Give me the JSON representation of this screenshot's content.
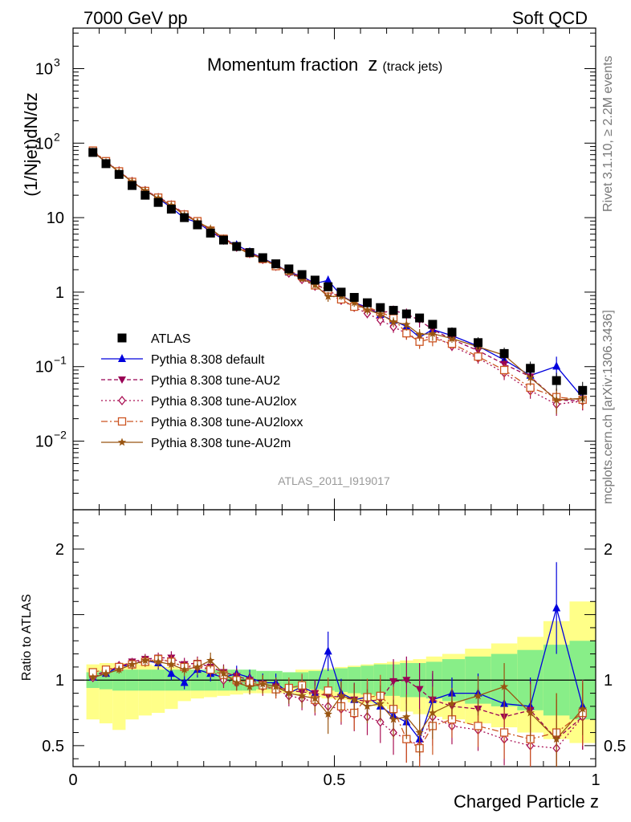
{
  "header": {
    "left": "7000 GeV pp",
    "right": "Soft QCD"
  },
  "side": {
    "top": "Rivet 3.1.10, ≥ 2.2M events",
    "bottom": "mcplots.cern.ch [arXiv:1306.3436]"
  },
  "chart_data": {
    "type": "line",
    "title_main": "Momentum fraction",
    "title_var": "z",
    "title_sub": "(track jets)",
    "watermark": "ATLAS_2011_I919017",
    "xlabel": "Charged Particle z",
    "ylabel": "(1/Njet)dN/dz",
    "ratio_ylabel": "Ratio to ATLAS",
    "xlim": [
      0,
      1
    ],
    "ylim": [
      0.0012,
      3500
    ],
    "ylog": true,
    "ratio_ylim": [
      0.34,
      2.3
    ],
    "x_ticks": [
      {
        "v": 0,
        "label": "0"
      },
      {
        "v": 0.5,
        "label": "0.5"
      },
      {
        "v": 1,
        "label": "1"
      }
    ],
    "y_ticks": [
      {
        "v": 1000,
        "label": "10",
        "exp": "3"
      },
      {
        "v": 100,
        "label": "10",
        "exp": "2"
      },
      {
        "v": 10,
        "label": "10",
        "exp": ""
      },
      {
        "v": 1,
        "label": "1",
        "exp": ""
      },
      {
        "v": 0.1,
        "label": "10",
        "exp": "−1"
      },
      {
        "v": 0.01,
        "label": "10",
        "exp": "−2"
      }
    ],
    "ratio_ticks": [
      {
        "v": 2,
        "label": "2"
      },
      {
        "v": 1,
        "label": "1"
      },
      {
        "v": 0.5,
        "label": "0.5"
      }
    ],
    "legend_position": "lower-left",
    "x": [
      0.038,
      0.063,
      0.088,
      0.113,
      0.138,
      0.163,
      0.188,
      0.213,
      0.238,
      0.263,
      0.288,
      0.313,
      0.338,
      0.363,
      0.388,
      0.413,
      0.438,
      0.463,
      0.488,
      0.513,
      0.538,
      0.563,
      0.588,
      0.613,
      0.638,
      0.663,
      0.688,
      0.725,
      0.775,
      0.825,
      0.875,
      0.925,
      0.975
    ],
    "data": {
      "name": "ATLAS",
      "values": [
        75,
        53,
        38,
        27,
        20,
        16,
        13,
        10,
        8,
        6.2,
        5,
        4.1,
        3.4,
        2.9,
        2.4,
        2.05,
        1.72,
        1.45,
        1.18,
        1.0,
        0.85,
        0.72,
        0.62,
        0.57,
        0.51,
        0.45,
        0.37,
        0.29,
        0.21,
        0.15,
        0.095,
        0.065,
        0.048
      ],
      "band_stat": [
        0.06,
        0.07,
        0.08,
        0.08,
        0.08,
        0.08,
        0.08,
        0.08,
        0.08,
        0.08,
        0.08,
        0.08,
        0.08,
        0.07,
        0.07,
        0.06,
        0.06,
        0.07,
        0.08,
        0.09,
        0.1,
        0.11,
        0.12,
        0.12,
        0.13,
        0.13,
        0.14,
        0.16,
        0.18,
        0.2,
        0.23,
        0.27,
        0.3
      ],
      "band_tot_up": [
        0.12,
        0.13,
        0.13,
        0.13,
        0.12,
        0.11,
        0.1,
        0.09,
        0.08,
        0.07,
        0.06,
        0.06,
        0.05,
        0.05,
        0.05,
        0.06,
        0.08,
        0.08,
        0.09,
        0.1,
        0.11,
        0.12,
        0.13,
        0.14,
        0.15,
        0.16,
        0.18,
        0.2,
        0.24,
        0.28,
        0.33,
        0.45,
        0.6
      ],
      "band_tot_dn": [
        0.3,
        0.33,
        0.38,
        0.3,
        0.27,
        0.25,
        0.22,
        0.16,
        0.14,
        0.13,
        0.12,
        0.11,
        0.1,
        0.1,
        0.1,
        0.1,
        0.11,
        0.13,
        0.14,
        0.15,
        0.17,
        0.18,
        0.2,
        0.22,
        0.24,
        0.26,
        0.28,
        0.3,
        0.33,
        0.36,
        0.4,
        0.45,
        0.48
      ]
    },
    "series": [
      {
        "name": "Pythia 8.308 default",
        "color": "#0000dd",
        "dash": "",
        "marker": "triangle-up",
        "ratio": [
          1.02,
          1.05,
          1.1,
          1.12,
          1.15,
          1.13,
          1.05,
          0.98,
          1.08,
          1.05,
          1.02,
          1.05,
          1.02,
          0.98,
          0.98,
          0.9,
          0.95,
          0.9,
          1.22,
          0.9,
          0.85,
          0.87,
          0.8,
          0.73,
          0.68,
          0.55,
          0.85,
          0.9,
          0.9,
          0.82,
          0.8,
          1.55,
          0.8
        ],
        "err": [
          0.02,
          0.03,
          0.03,
          0.04,
          0.04,
          0.05,
          0.05,
          0.05,
          0.06,
          0.06,
          0.06,
          0.06,
          0.06,
          0.07,
          0.07,
          0.08,
          0.09,
          0.1,
          0.15,
          0.11,
          0.12,
          0.13,
          0.14,
          0.15,
          0.17,
          0.18,
          0.2,
          0.12,
          0.15,
          0.18,
          0.22,
          0.35,
          0.2
        ]
      },
      {
        "name": "Pythia 8.308 tune-AU2",
        "color": "#990055",
        "dash": "5,3",
        "marker": "triangle-down",
        "ratio": [
          1.03,
          1.07,
          1.1,
          1.14,
          1.16,
          1.17,
          1.17,
          1.12,
          1.13,
          1.1,
          1.06,
          1.03,
          1.0,
          0.97,
          0.95,
          0.92,
          0.91,
          0.9,
          0.88,
          0.87,
          0.85,
          0.84,
          0.85,
          0.99,
          1.0,
          0.93,
          0.85,
          0.8,
          0.78,
          0.72,
          0.77,
          0.55,
          0.72
        ],
        "err": [
          0.02,
          0.02,
          0.03,
          0.03,
          0.04,
          0.04,
          0.05,
          0.05,
          0.05,
          0.06,
          0.06,
          0.06,
          0.06,
          0.07,
          0.07,
          0.08,
          0.09,
          0.1,
          0.1,
          0.12,
          0.13,
          0.14,
          0.16,
          0.17,
          0.18,
          0.2,
          0.22,
          0.14,
          0.16,
          0.2,
          0.22,
          0.3,
          0.25
        ]
      },
      {
        "name": "Pythia 8.308 tune-AU2lox",
        "color": "#aa1155",
        "dash": "2,3",
        "marker": "diamond",
        "ratio": [
          1.02,
          1.06,
          1.11,
          1.13,
          1.15,
          1.16,
          1.14,
          1.1,
          1.1,
          1.08,
          1.0,
          0.98,
          0.97,
          0.95,
          0.93,
          0.88,
          0.86,
          0.83,
          0.8,
          0.78,
          0.74,
          0.72,
          0.68,
          0.6,
          0.55,
          0.5,
          0.72,
          0.65,
          0.62,
          0.55,
          0.5,
          0.48,
          0.72
        ],
        "err": [
          0.02,
          0.02,
          0.03,
          0.03,
          0.04,
          0.04,
          0.05,
          0.05,
          0.05,
          0.06,
          0.06,
          0.06,
          0.06,
          0.07,
          0.07,
          0.08,
          0.09,
          0.1,
          0.1,
          0.12,
          0.13,
          0.14,
          0.16,
          0.17,
          0.18,
          0.2,
          0.22,
          0.14,
          0.16,
          0.2,
          0.22,
          0.3,
          0.25
        ]
      },
      {
        "name": "Pythia 8.308 tune-AU2loxx",
        "color": "#cc5522",
        "dash": "8,3,2,3",
        "marker": "square-open",
        "ratio": [
          1.06,
          1.08,
          1.1,
          1.12,
          1.14,
          1.16,
          1.14,
          1.1,
          1.12,
          1.08,
          1.04,
          1.0,
          0.98,
          0.96,
          0.93,
          0.94,
          0.96,
          0.85,
          0.92,
          0.8,
          0.75,
          0.87,
          0.88,
          0.78,
          0.55,
          0.48,
          0.65,
          0.7,
          0.65,
          0.6,
          0.55,
          0.6,
          0.75
        ],
        "err": [
          0.02,
          0.02,
          0.03,
          0.03,
          0.04,
          0.04,
          0.05,
          0.05,
          0.05,
          0.06,
          0.06,
          0.06,
          0.06,
          0.07,
          0.07,
          0.08,
          0.09,
          0.1,
          0.1,
          0.12,
          0.13,
          0.14,
          0.16,
          0.17,
          0.18,
          0.2,
          0.22,
          0.14,
          0.16,
          0.2,
          0.22,
          0.3,
          0.25
        ]
      },
      {
        "name": "Pythia 8.308 tune-AU2m",
        "color": "#995511",
        "dash": "",
        "marker": "star",
        "ratio": [
          1.02,
          1.05,
          1.08,
          1.12,
          1.15,
          1.14,
          1.12,
          1.08,
          1.1,
          1.15,
          1.05,
          0.98,
          0.95,
          0.97,
          0.95,
          0.9,
          0.88,
          0.86,
          0.74,
          0.88,
          0.85,
          0.8,
          0.82,
          0.7,
          0.72,
          0.6,
          0.75,
          0.82,
          0.88,
          0.95,
          0.75,
          0.55,
          0.78
        ],
        "err": [
          0.02,
          0.03,
          0.03,
          0.04,
          0.04,
          0.05,
          0.05,
          0.05,
          0.06,
          0.06,
          0.06,
          0.06,
          0.06,
          0.07,
          0.07,
          0.08,
          0.09,
          0.1,
          0.15,
          0.11,
          0.12,
          0.13,
          0.14,
          0.15,
          0.17,
          0.18,
          0.2,
          0.12,
          0.15,
          0.18,
          0.22,
          0.35,
          0.2
        ]
      }
    ]
  }
}
